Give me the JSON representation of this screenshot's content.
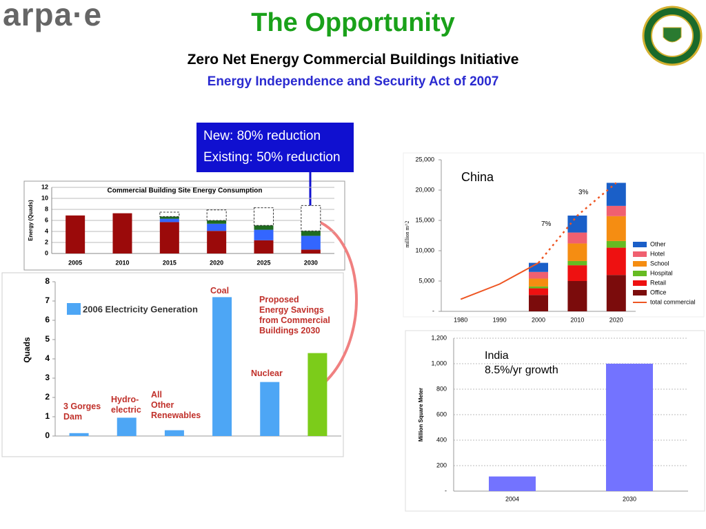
{
  "header": {
    "logo": "arpa·e",
    "title": "The Opportunity",
    "subtitle": "Zero Net Energy Commercial Buildings Initiative",
    "subtitle2": "Energy Independence and Security Act of 2007"
  },
  "callout": [
    "New: 80% reduction",
    "Existing: 50% reduction"
  ],
  "chart_data": [
    {
      "type": "bar",
      "stacked": true,
      "title": "Commercial Building Site Energy Consumption",
      "y_label": "Energy (Quads)",
      "categories": [
        "2005",
        "2010",
        "2015",
        "2020",
        "2025",
        "2030"
      ],
      "ylim": [
        0,
        12
      ],
      "yticks": [
        0,
        2,
        4,
        6,
        8,
        10,
        12
      ],
      "grid": true,
      "series": [
        {
          "color": "#9b0a0a",
          "values": [
            6.9,
            7.3,
            5.7,
            4.1,
            2.4,
            0.7
          ]
        },
        {
          "color": "#3366ff",
          "values": [
            null,
            null,
            0.6,
            1.3,
            1.9,
            2.5
          ]
        },
        {
          "color": "#1f6b1f",
          "values": [
            null,
            null,
            0.4,
            0.6,
            0.8,
            0.9
          ]
        },
        {
          "color": "#ffffff",
          "dashed": true,
          "values": [
            null,
            null,
            0.8,
            1.9,
            3.2,
            4.6
          ]
        }
      ]
    },
    {
      "type": "bar",
      "legend": "2006 Electricity Generation",
      "y_label": "Quads",
      "categories": [
        "3 Gorges\nDam",
        "Hydro-\nelectric",
        "All\nOther\nRenewables",
        "Coal",
        "Nuclear",
        "Proposed\nEnergy Savings\nfrom Commercial\nBuildings 2030"
      ],
      "values": [
        0.15,
        0.95,
        0.3,
        7.2,
        2.8,
        4.3
      ],
      "colors": [
        "#4da6f5",
        "#4da6f5",
        "#4da6f5",
        "#4da6f5",
        "#4da6f5",
        "#7ccc1a"
      ],
      "ylim": [
        0,
        8
      ],
      "yticks": [
        0,
        1,
        2,
        3,
        4,
        5,
        6,
        7,
        8
      ],
      "grid": false
    },
    {
      "type": "bar",
      "stacked": true,
      "y_label": "million m^2",
      "annotations": [
        "China",
        "7%",
        "3%"
      ],
      "categories": [
        "1980",
        "1990",
        "2000",
        "2010",
        "2020"
      ],
      "ylim": [
        0,
        25000
      ],
      "yticks": [
        {
          "value": 0,
          "label": "-"
        },
        {
          "value": 5000,
          "label": "5,000"
        },
        {
          "value": 10000,
          "label": "10,000"
        },
        {
          "value": 15000,
          "label": "15,000"
        },
        {
          "value": 20000,
          "label": "20,000"
        },
        {
          "value": 25000,
          "label": "25,000"
        }
      ],
      "grid": false,
      "series": [
        {
          "name": "Office",
          "color": "#7b0c0c",
          "values": [
            null,
            null,
            2700,
            5000,
            6000
          ]
        },
        {
          "name": "Retail",
          "color": "#ee1111",
          "values": [
            null,
            null,
            1100,
            2600,
            4500
          ]
        },
        {
          "name": "Hospital",
          "color": "#66bb22",
          "values": [
            null,
            null,
            300,
            700,
            1100
          ]
        },
        {
          "name": "School",
          "color": "#f58d12",
          "values": [
            null,
            null,
            1300,
            2900,
            4100
          ]
        },
        {
          "name": "Hotel",
          "color": "#f06070",
          "values": [
            null,
            null,
            1100,
            1800,
            1700
          ]
        },
        {
          "name": "Other",
          "color": "#1a5fc8",
          "values": [
            null,
            null,
            1500,
            2800,
            3800
          ]
        },
        {
          "name": "total commercial",
          "type": "line",
          "color": "#ee5522",
          "dashed_from_index": 2,
          "values": [
            2000,
            4500,
            8000,
            15800,
            21200
          ]
        }
      ]
    },
    {
      "type": "bar",
      "y_label": "Million Square Meter",
      "annotations": [
        "India\n8.5%/yr growth"
      ],
      "categories": [
        "2004",
        "2030"
      ],
      "values": [
        115,
        1000
      ],
      "color": "#7373ff",
      "ylim": [
        0,
        1200
      ],
      "yticks": [
        {
          "value": 0,
          "label": "-"
        },
        200,
        400,
        600,
        800,
        {
          "value": 1000,
          "label": "1,000"
        },
        {
          "value": 1200,
          "label": "1,200"
        }
      ],
      "grid": true
    }
  ]
}
